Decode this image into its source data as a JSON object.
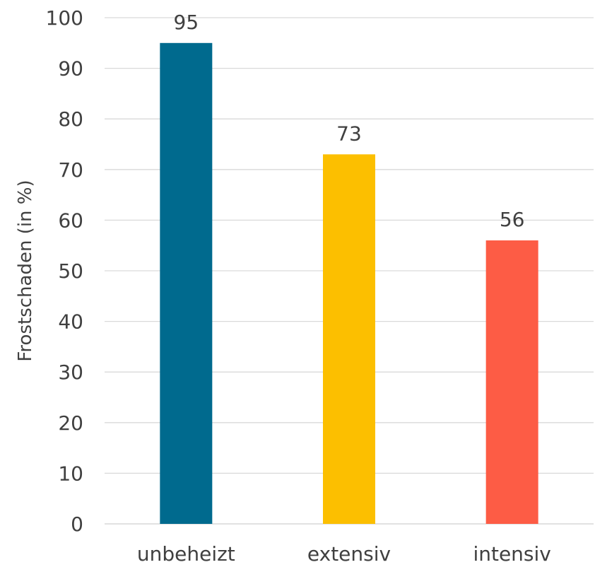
{
  "chart_data": {
    "type": "bar",
    "title": "",
    "xlabel": "",
    "ylabel": "Frostschaden (in %)",
    "categories": [
      "unbeheizt",
      "extensiv",
      "intensiv"
    ],
    "values": [
      95,
      73,
      56
    ],
    "data_labels": [
      "95",
      "73",
      "56"
    ],
    "colors": [
      "#006a8e",
      "#fcbf00",
      "#fd5c45"
    ],
    "ylim": [
      0,
      100
    ],
    "yticks": [
      0,
      10,
      20,
      30,
      40,
      50,
      60,
      70,
      80,
      90,
      100
    ],
    "grid": true,
    "legend": "none"
  }
}
